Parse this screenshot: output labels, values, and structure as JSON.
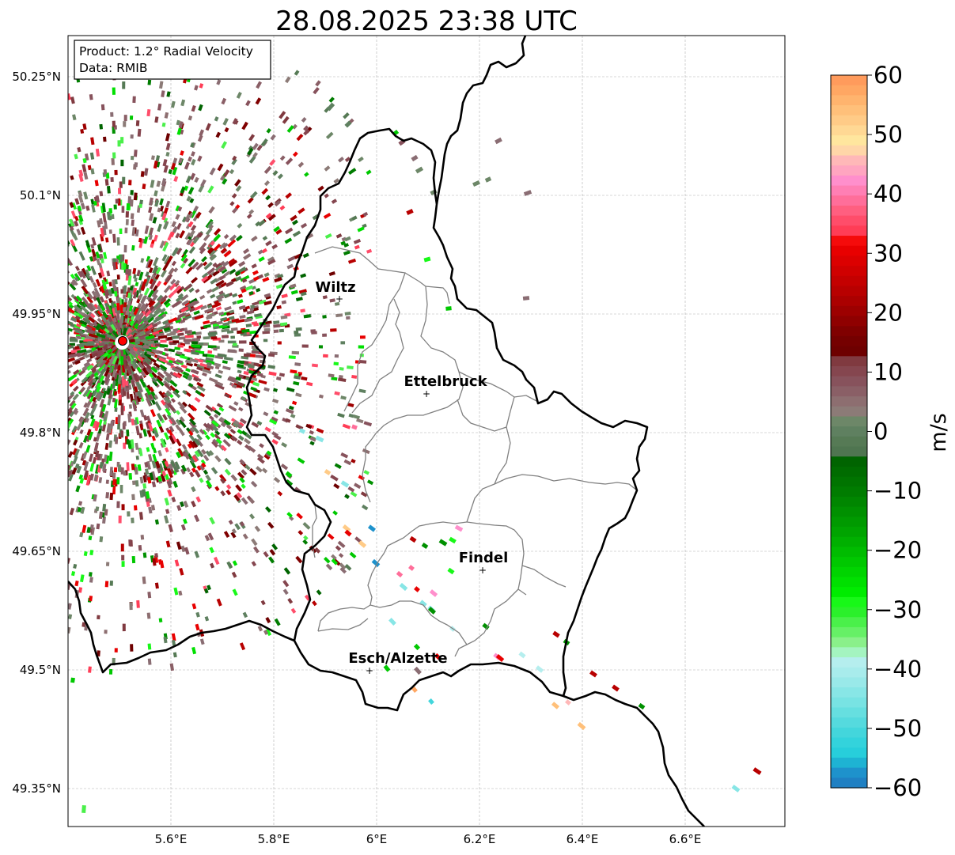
{
  "title": "28.08.2025 23:38 UTC",
  "info_box": {
    "product": "Product: 1.2° Radial Velocity",
    "source": "Data: RMIB"
  },
  "map": {
    "lon_range": [
      5.4,
      6.8
    ],
    "lat_range": [
      49.3,
      50.3
    ],
    "lon_ticks": [
      {
        "value": 5.6,
        "label": "5.6°E"
      },
      {
        "value": 5.8,
        "label": "5.8°E"
      },
      {
        "value": 6.0,
        "label": "6°E"
      },
      {
        "value": 6.2,
        "label": "6.2°E"
      },
      {
        "value": 6.4,
        "label": "6.4°E"
      },
      {
        "value": 6.6,
        "label": "6.6°E"
      }
    ],
    "lat_ticks": [
      {
        "value": 50.25,
        "label": "50.25°N"
      },
      {
        "value": 50.1,
        "label": "50.1°N"
      },
      {
        "value": 49.95,
        "label": "49.95°N"
      },
      {
        "value": 49.8,
        "label": "49.8°N"
      },
      {
        "value": 49.65,
        "label": "49.65°N"
      },
      {
        "value": 49.5,
        "label": "49.5°N"
      },
      {
        "value": 49.35,
        "label": "49.35°N"
      }
    ],
    "grid": true,
    "radar_site": {
      "lon": 5.505,
      "lat": 49.914,
      "color": "#ff0000"
    },
    "cities": [
      {
        "name": "Wiltz",
        "lon": 5.933,
        "lat": 49.967
      },
      {
        "name": "Ettelbruck",
        "lon": 6.103,
        "lat": 49.848
      },
      {
        "name": "Findel",
        "lon": 6.21,
        "lat": 49.627
      },
      {
        "name": "Esch/Alzette",
        "lon": 5.989,
        "lat": 49.498
      }
    ],
    "border_color": "#000000",
    "canton_color": "#808080"
  },
  "colorbar": {
    "unit": "m/s",
    "range": [
      -60,
      60
    ],
    "ticks": [
      "60",
      "50",
      "40",
      "30",
      "20",
      "10",
      "0",
      "−10",
      "−20",
      "−30",
      "−40",
      "−50",
      "−60"
    ],
    "colors": [
      "#ff9b5c",
      "#ffa763",
      "#ffb46e",
      "#ffc07a",
      "#ffcb87",
      "#ffd894",
      "#ffe69e",
      "#ffd6a8",
      "#ffb8b8",
      "#ffa5c0",
      "#ff8fcc",
      "#ff7fb4",
      "#ff6e9a",
      "#ff5f80",
      "#ff4d6a",
      "#ff3d56",
      "#f50b0b",
      "#e80000",
      "#dc0000",
      "#d00000",
      "#c40000",
      "#b80000",
      "#ab0000",
      "#9d0000",
      "#8f0000",
      "#800000",
      "#750000",
      "#6e0000",
      "#803a40",
      "#85464f",
      "#87525c",
      "#8a5f66",
      "#8d6e70",
      "#8c7b77",
      "#6d8768",
      "#5f8060",
      "#567a55",
      "#4f7550",
      "#006400",
      "#006c00",
      "#007400",
      "#007c00",
      "#008600",
      "#009000",
      "#009a00",
      "#00a400",
      "#00b000",
      "#00bc00",
      "#00c800",
      "#00d400",
      "#00e000",
      "#00ec00",
      "#18f818",
      "#2bf02b",
      "#4af04a",
      "#66f066",
      "#8af08a",
      "#a4f4c0",
      "#b5eeee",
      "#a8ecec",
      "#99e9e9",
      "#88e6e6",
      "#78e3e3",
      "#66dfe0",
      "#55dade",
      "#43d6dc",
      "#33d3dc",
      "#27cedb",
      "#1eb3d3",
      "#1e92cc",
      "#1f80c3"
    ]
  }
}
